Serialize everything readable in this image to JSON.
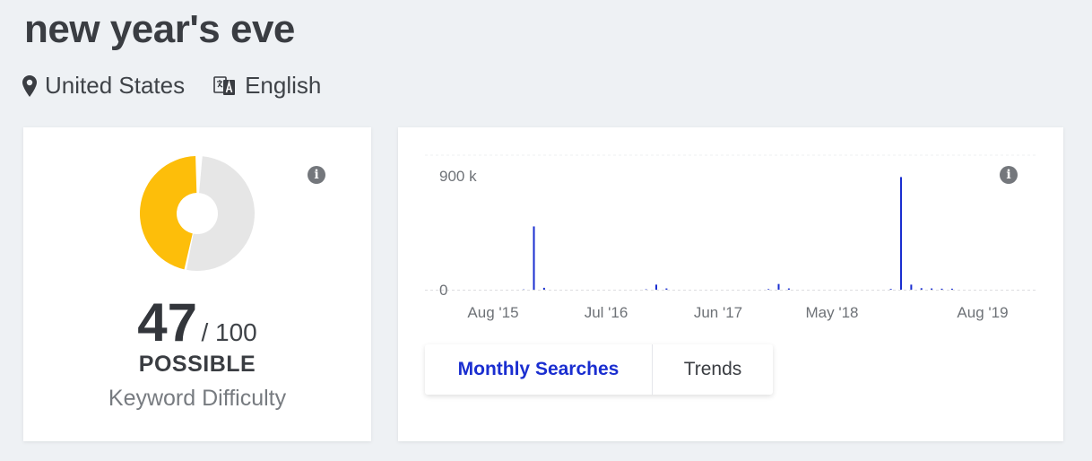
{
  "header": {
    "keyword": "new year's eve",
    "location": "United States",
    "language": "English"
  },
  "difficulty": {
    "score": 47,
    "max_label": "/ 100",
    "level": "POSSIBLE",
    "caption": "Keyword Difficulty",
    "colors": {
      "filled": "#fdbe0a",
      "empty": "#e6e6e6"
    },
    "info_icon": "info-icon"
  },
  "volume": {
    "tabs": [
      {
        "label": "Monthly Searches",
        "active": true
      },
      {
        "label": "Trends",
        "active": false
      }
    ],
    "info_icon": "info-icon",
    "chart_data": {
      "type": "bar",
      "series_color": "#1a2ed0",
      "y_ticks": [
        {
          "value": 0,
          "label": "0"
        },
        {
          "value": 900000,
          "label": "900 k"
        }
      ],
      "ylim": [
        0,
        900000
      ],
      "x_ticks": [
        "Aug '15",
        "Jul '16",
        "Jun '17",
        "May '18",
        "Aug '19"
      ],
      "points": [
        {
          "date": "2015-11",
          "value": 2000
        },
        {
          "date": "2015-12",
          "value": 500000
        },
        {
          "date": "2016-01",
          "value": 15000
        },
        {
          "date": "2016-11",
          "value": 3000
        },
        {
          "date": "2016-12",
          "value": 40000
        },
        {
          "date": "2017-01",
          "value": 10000
        },
        {
          "date": "2017-11",
          "value": 5000
        },
        {
          "date": "2017-12",
          "value": 45000
        },
        {
          "date": "2018-01",
          "value": 10000
        },
        {
          "date": "2018-11",
          "value": 6000
        },
        {
          "date": "2018-12",
          "value": 890000
        },
        {
          "date": "2019-01",
          "value": 40000
        },
        {
          "date": "2019-02",
          "value": 12000
        },
        {
          "date": "2019-03",
          "value": 10000
        },
        {
          "date": "2019-04",
          "value": 8000
        },
        {
          "date": "2019-05",
          "value": 8000
        }
      ]
    }
  }
}
